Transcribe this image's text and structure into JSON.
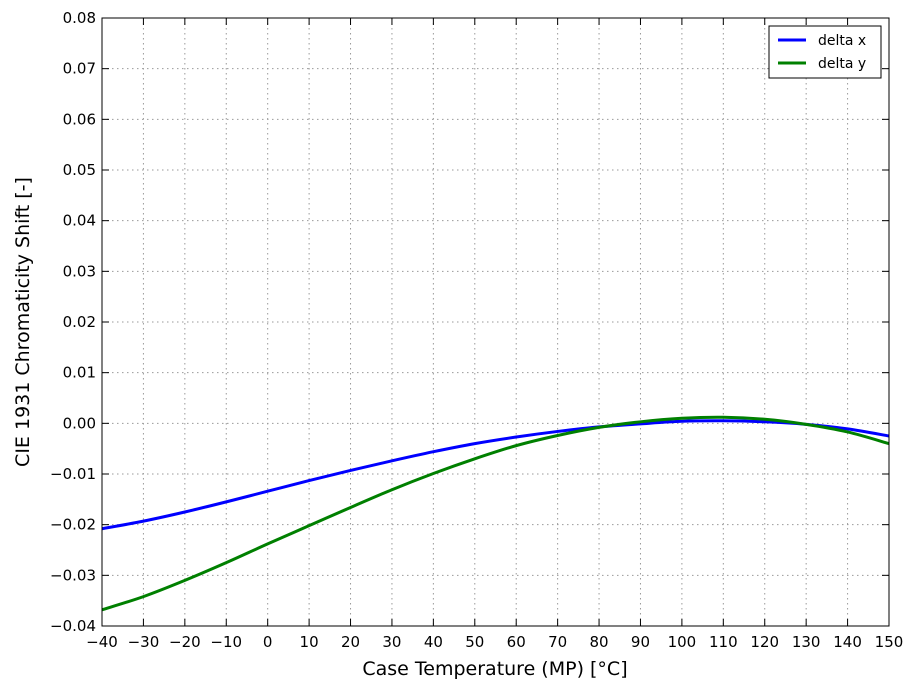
{
  "chart_data": {
    "type": "line",
    "title": "",
    "xlabel": "Case Temperature (MP) [°C]",
    "ylabel": "CIE 1931 Chromaticity Shift  [-]",
    "xlim": [
      -40,
      150
    ],
    "ylim": [
      -0.04,
      0.08
    ],
    "x_ticks": [
      -40,
      -30,
      -20,
      -10,
      0,
      10,
      20,
      30,
      40,
      50,
      60,
      70,
      80,
      90,
      100,
      110,
      120,
      130,
      140,
      150
    ],
    "x_tick_labels": [
      "−40",
      "−30",
      "−20",
      "−10",
      "0",
      "10",
      "20",
      "30",
      "40",
      "50",
      "60",
      "70",
      "80",
      "90",
      "100",
      "110",
      "120",
      "130",
      "140",
      "150"
    ],
    "y_ticks": [
      -0.04,
      -0.03,
      -0.02,
      -0.01,
      0.0,
      0.01,
      0.02,
      0.03,
      0.04,
      0.05,
      0.06,
      0.07,
      0.08
    ],
    "y_tick_labels": [
      "−0.04",
      "−0.03",
      "−0.02",
      "−0.01",
      "0.00",
      "0.01",
      "0.02",
      "0.03",
      "0.04",
      "0.05",
      "0.06",
      "0.07",
      "0.08"
    ],
    "grid": true,
    "legend_position": "top-right",
    "x": [
      -40,
      -30,
      -20,
      -10,
      0,
      10,
      20,
      30,
      40,
      50,
      60,
      70,
      80,
      90,
      100,
      110,
      120,
      130,
      140,
      150
    ],
    "series": [
      {
        "name": "delta x",
        "color": "#0000ff",
        "values": [
          -0.0208,
          -0.0193,
          -0.0175,
          -0.0155,
          -0.0134,
          -0.0113,
          -0.0093,
          -0.0074,
          -0.0056,
          -0.004,
          -0.0027,
          -0.0016,
          -0.0007,
          -0.0001,
          0.0004,
          0.0005,
          0.0003,
          -0.0002,
          -0.0011,
          -0.0025
        ]
      },
      {
        "name": "delta y",
        "color": "#008000",
        "values": [
          -0.0368,
          -0.0342,
          -0.031,
          -0.0275,
          -0.0238,
          -0.0202,
          -0.0166,
          -0.0131,
          -0.0099,
          -0.007,
          -0.0044,
          -0.0024,
          -0.0008,
          0.0003,
          0.001,
          0.0012,
          0.0008,
          -0.0002,
          -0.0017,
          -0.004
        ]
      }
    ]
  }
}
